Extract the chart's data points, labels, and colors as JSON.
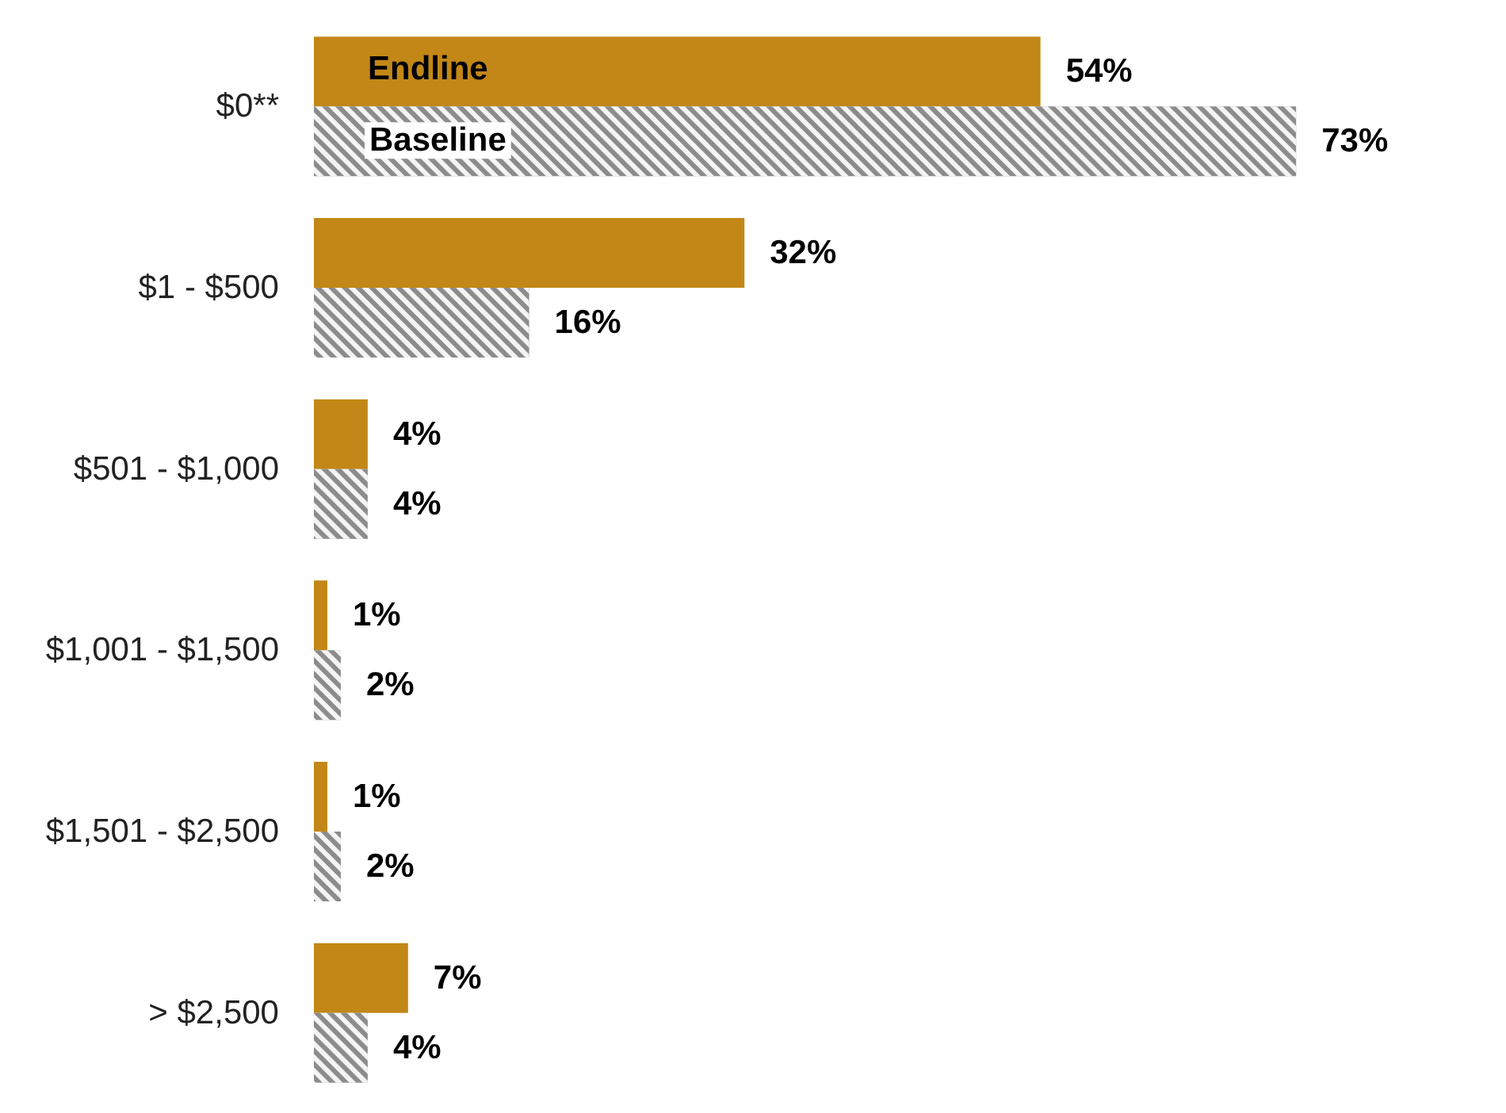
{
  "chart_data": {
    "type": "bar",
    "orientation": "horizontal",
    "categories": [
      "$0**",
      "$1 - $500",
      "$501 - $1,000",
      "$1,001 - $1,500",
      "$1,501 - $2,500",
      "> $2,500"
    ],
    "tick_labels": "y",
    "legend": false,
    "series": [
      {
        "name": "Endline",
        "color": "#c28716",
        "values": [
          54,
          32,
          4,
          1,
          1,
          7
        ],
        "value_labels": [
          "54%",
          "32%",
          "4%",
          "1%",
          "1%",
          "7%"
        ]
      },
      {
        "name": "Baseline",
        "color": "#8c8c8c",
        "values": [
          73,
          16,
          4,
          2,
          2,
          4
        ],
        "value_labels": [
          "73%",
          "16%",
          "4%",
          "2%",
          "2%",
          "4%"
        ]
      }
    ]
  }
}
